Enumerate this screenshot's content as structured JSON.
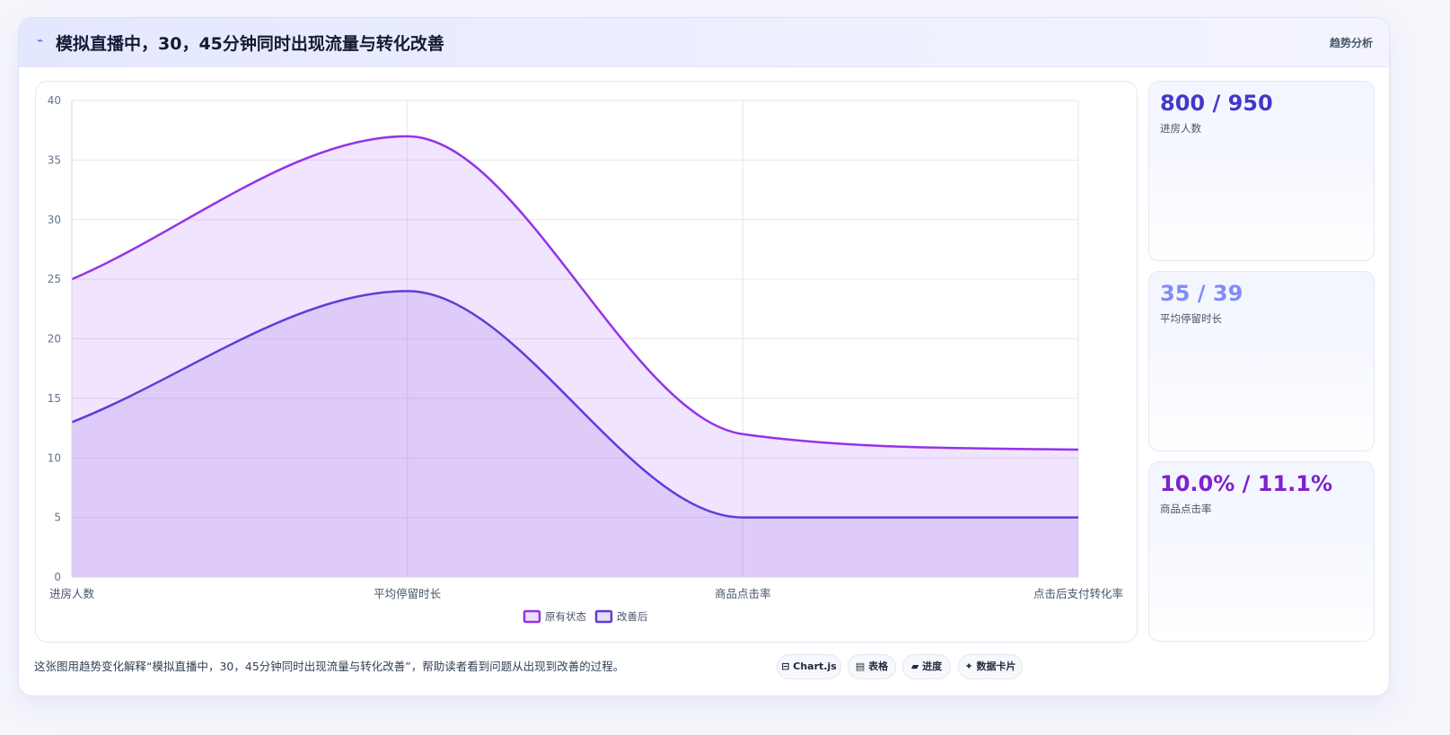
{
  "header": {
    "glyph": "⌁",
    "title": "模拟直播中，30，45分钟同时出现流量与转化改善",
    "tag": "趋势分析"
  },
  "colors": {
    "series_original": "#9333ea",
    "series_improved": "#5b3fd6",
    "kpi_1": "#4338ca",
    "kpi_2": "#818cf8",
    "kpi_3": "#7e22ce"
  },
  "chart_data": {
    "type": "area",
    "categories": [
      "进房人数",
      "平均停留时长",
      "商品点击率",
      "点击后支付转化率"
    ],
    "series": [
      {
        "name": "原有状态",
        "values": [
          25,
          37,
          12,
          10.7
        ],
        "color": "#9333ea"
      },
      {
        "name": "改善后",
        "values": [
          13,
          24,
          5,
          5
        ],
        "color": "#5b3fd6"
      }
    ],
    "y_ticks": [
      0,
      5,
      10,
      15,
      20,
      25,
      30,
      35,
      40
    ],
    "ylim": [
      0,
      40
    ],
    "grid": true,
    "legend_position": "bottom-center",
    "smooth": true
  },
  "kpis": [
    {
      "value": "800 / 950",
      "label": "进房人数"
    },
    {
      "value": "35 / 39",
      "label": "平均停留时长"
    },
    {
      "value": "10.0% / 11.1%",
      "label": "商品点击率"
    }
  ],
  "footer": {
    "description": "这张图用趋势变化解释“模拟直播中，30，45分钟同时出现流量与转化改善”，帮助读者看到问题从出现到改善的过程。",
    "chips": [
      {
        "label": "⊟ Chart.js",
        "icon": "chart-icon"
      },
      {
        "label": "▤ 表格",
        "icon": "table-icon"
      },
      {
        "label": "▰ 进度",
        "icon": "progress-icon"
      },
      {
        "label": "✦ 数据卡片",
        "icon": "sparkle-icon"
      }
    ]
  }
}
